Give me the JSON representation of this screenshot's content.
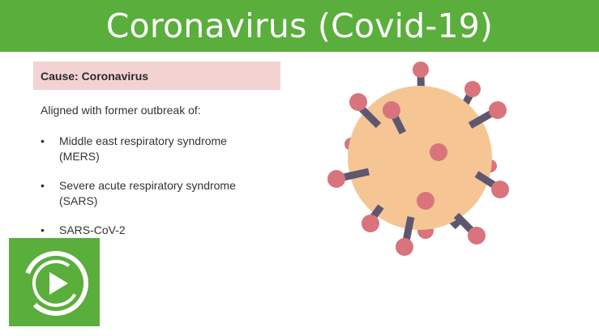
{
  "title": "Coronavirus (Covid-19)",
  "cause": "Cause: Coronavirus",
  "intro": "Aligned with former outbreak of:",
  "bullets": [
    {
      "line1": "Middle east respiratory syndrome",
      "line2": "(MERS)"
    },
    {
      "line1": "Severe acute respiratory syndrome",
      "line2": "(SARS)"
    },
    {
      "line1": "SARS-CoV-2",
      "line2": ""
    }
  ],
  "colors": {
    "title_bar": "#5aae3c",
    "cause_highlight": "#f3d3d2",
    "virus_body": "#f5c694",
    "spike_stalk": "#5e5770",
    "spike_tip": "#d9747c"
  },
  "icons": {
    "illustration": "coronavirus-icon",
    "logo": "play-button-logo"
  }
}
